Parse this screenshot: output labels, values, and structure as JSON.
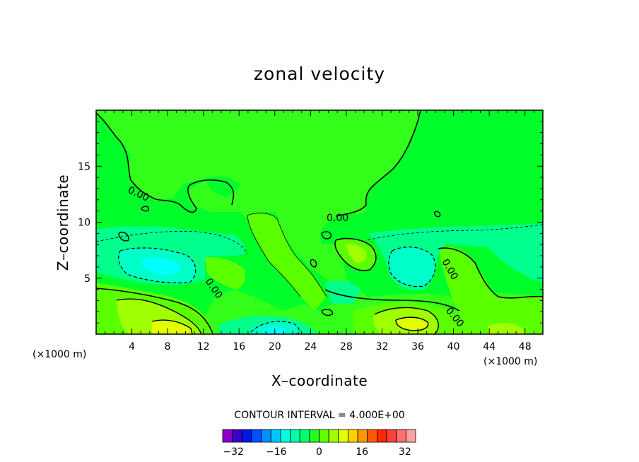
{
  "chart_data": {
    "type": "heatmap",
    "title": "zonal velocity",
    "xlabel": "X–coordinate",
    "ylabel": "Z–coordinate",
    "x_unit_label": "(×1000 m)",
    "z_unit_label": "(×1000 m)",
    "xlim": [
      0,
      50
    ],
    "ylim": [
      0,
      20
    ],
    "x_ticks": [
      "4",
      "8",
      "12",
      "16",
      "20",
      "24",
      "28",
      "32",
      "36",
      "40",
      "44",
      "48"
    ],
    "y_ticks": [
      "5",
      "10",
      "15"
    ],
    "contour_interval_label": "CONTOUR INTERVAL = 4.000E+00",
    "contour_labels": [
      "0.00",
      "0.00",
      "0.00",
      "0.00",
      "0.00"
    ],
    "colorbar": {
      "levels_min": -36,
      "levels_max": 36,
      "interval": 4,
      "tick_labels": [
        "−32",
        "−16",
        "0",
        "16",
        "32"
      ],
      "colors": [
        "#8a00c8",
        "#3c00c8",
        "#0018e6",
        "#0050ff",
        "#0090ff",
        "#00c8ff",
        "#00ffe0",
        "#00ffaa",
        "#00ff70",
        "#20ff20",
        "#60ff00",
        "#a0ff00",
        "#e0ff00",
        "#ffd200",
        "#ff9600",
        "#ff5a00",
        "#ff2800",
        "#ff4040",
        "#ff7070",
        "#ffa0a0"
      ]
    }
  }
}
